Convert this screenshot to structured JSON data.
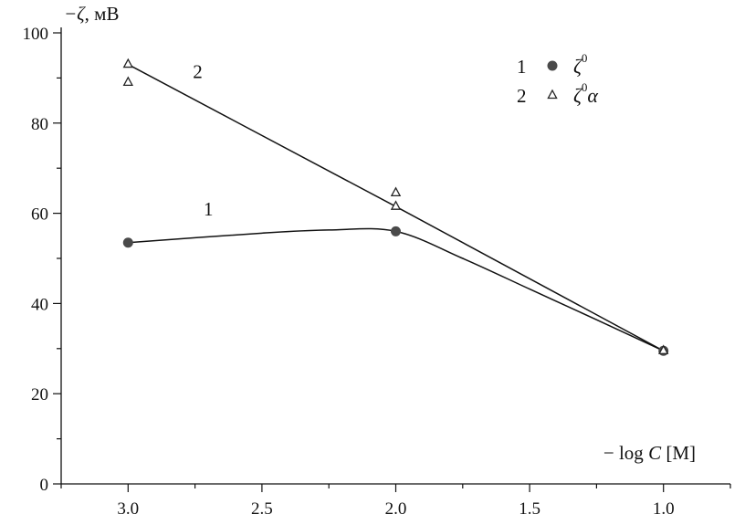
{
  "chart_data": {
    "type": "line",
    "x_axis": {
      "label_prefix": "− log ",
      "label_var": "C",
      "label_suffix": " [M]",
      "range": [
        3.25,
        0.75
      ],
      "reversed": true,
      "ticks": [
        3.0,
        2.5,
        2.0,
        1.5,
        1.0
      ],
      "tick_labels": [
        "3.0",
        "2.5",
        "2.0",
        "1.5",
        "1.0"
      ],
      "minor_step": 0.25
    },
    "y_axis": {
      "label_symbol": "−ζ",
      "label_unit": ", мВ",
      "range": [
        0,
        100
      ],
      "ticks": [
        0,
        20,
        40,
        60,
        80,
        100
      ],
      "tick_labels": [
        "0",
        "20",
        "40",
        "60",
        "80",
        "100"
      ],
      "minor_step": 10
    },
    "grid": false,
    "legend_position": "top-right",
    "series": [
      {
        "id": "1",
        "name": "ζ⁰",
        "legend_number": "1",
        "legend_base": "ζ",
        "legend_sup": "0",
        "legend_tail": "",
        "marker": "filled-circle",
        "curve_label": "1",
        "points": [
          {
            "x": 3.0,
            "y": 53.5
          },
          {
            "x": 2.0,
            "y": 56
          },
          {
            "x": 1.0,
            "y": 29.5
          }
        ],
        "curve": [
          {
            "x": 3.0,
            "y": 53.5
          },
          {
            "x": 2.5,
            "y": 55.6
          },
          {
            "x": 2.25,
            "y": 56.3
          },
          {
            "x": 2.0,
            "y": 56
          },
          {
            "x": 1.75,
            "y": 50
          },
          {
            "x": 1.5,
            "y": 43.2
          },
          {
            "x": 1.25,
            "y": 36.4
          },
          {
            "x": 1.0,
            "y": 29.5
          }
        ]
      },
      {
        "id": "2",
        "name": "ζ⁰α",
        "legend_number": "2",
        "legend_base": "ζ",
        "legend_sup": "0",
        "legend_tail": "α",
        "marker": "open-triangle",
        "curve_label": "2",
        "points": [
          {
            "x": 3.0,
            "y": 93
          },
          {
            "x": 3.0,
            "y": 89
          },
          {
            "x": 2.0,
            "y": 64.5
          },
          {
            "x": 2.0,
            "y": 61.5
          },
          {
            "x": 1.0,
            "y": 29.5
          }
        ],
        "curve": [
          {
            "x": 3.0,
            "y": 93
          },
          {
            "x": 2.0,
            "y": 61.5
          },
          {
            "x": 1.0,
            "y": 29.5
          }
        ]
      }
    ]
  }
}
